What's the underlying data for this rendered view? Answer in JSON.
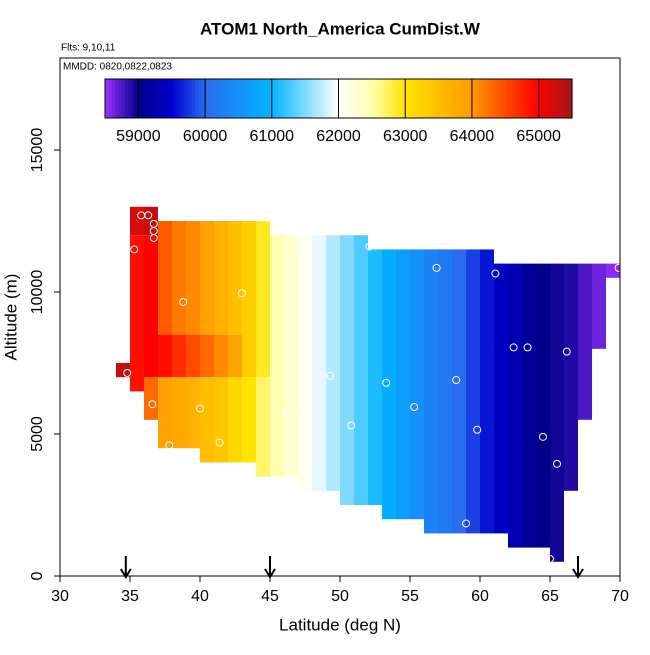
{
  "chart_data": {
    "type": "heatmap",
    "title": "ATOM1 North_America CumDist.W",
    "subtitle": "Flts: 9,10,11",
    "annotation": "MMDD: 0820,0822,0823",
    "x_label": "Latitude (deg N)",
    "y_label": "Altitude (m)",
    "xlim": [
      30,
      70
    ],
    "xticks": [
      30,
      35,
      40,
      45,
      50,
      55,
      60,
      65,
      70
    ],
    "ylim": [
      0,
      18240
    ],
    "yticks": [
      0,
      5000,
      10000,
      15000
    ],
    "colorbar_lim": [
      58500,
      65500
    ],
    "colorbar_ticks": [
      59000,
      60000,
      61000,
      62000,
      63000,
      64000,
      65000
    ],
    "colorscale": [
      [
        58500,
        "#9b30ff"
      ],
      [
        59000,
        "#00008b"
      ],
      [
        59500,
        "#0000cd"
      ],
      [
        60000,
        "#2a6cf0"
      ],
      [
        61000,
        "#00b4ff"
      ],
      [
        62000,
        "#ffffff"
      ],
      [
        62500,
        "#ffffb0"
      ],
      [
        63000,
        "#ffe400"
      ],
      [
        64000,
        "#ff9a00"
      ],
      [
        64500,
        "#ff4a00"
      ],
      [
        65000,
        "#ff0000"
      ],
      [
        65500,
        "#a01818"
      ]
    ],
    "columns": [
      {
        "lat": [
          34,
          35
        ],
        "bands": [
          [
            7000,
            7500,
            65300
          ]
        ]
      },
      {
        "lat": [
          35,
          36
        ],
        "bands": [
          [
            6500,
            12000,
            64900
          ],
          [
            12000,
            13000,
            65200
          ]
        ]
      },
      {
        "lat": [
          36,
          37
        ],
        "bands": [
          [
            5500,
            7000,
            64300
          ],
          [
            7000,
            12000,
            65000
          ],
          [
            12000,
            13000,
            65300
          ]
        ]
      },
      {
        "lat": [
          37,
          38
        ],
        "bands": [
          [
            4500,
            7000,
            63900
          ],
          [
            7000,
            8500,
            64900
          ],
          [
            8500,
            12500,
            64400
          ]
        ]
      },
      {
        "lat": [
          38,
          39
        ],
        "bands": [
          [
            4500,
            7000,
            63800
          ],
          [
            7000,
            8500,
            64700
          ],
          [
            8500,
            12500,
            64200
          ]
        ]
      },
      {
        "lat": [
          39,
          40
        ],
        "bands": [
          [
            4500,
            7000,
            63700
          ],
          [
            7000,
            8500,
            64500
          ],
          [
            8500,
            12500,
            64100
          ]
        ]
      },
      {
        "lat": [
          40,
          41
        ],
        "bands": [
          [
            4000,
            7000,
            63500
          ],
          [
            7000,
            8500,
            64300
          ],
          [
            8500,
            12500,
            63900
          ]
        ]
      },
      {
        "lat": [
          41,
          42
        ],
        "bands": [
          [
            4000,
            7000,
            63400
          ],
          [
            7000,
            8500,
            64100
          ],
          [
            8500,
            12500,
            63700
          ]
        ]
      },
      {
        "lat": [
          42,
          43
        ],
        "bands": [
          [
            4000,
            7000,
            63200
          ],
          [
            7000,
            8500,
            63900
          ],
          [
            8500,
            12500,
            63500
          ]
        ]
      },
      {
        "lat": [
          43,
          44
        ],
        "bands": [
          [
            4000,
            7000,
            63000
          ],
          [
            7000,
            12500,
            63300
          ]
        ]
      },
      {
        "lat": [
          44,
          45
        ],
        "bands": [
          [
            3500,
            7000,
            62700
          ],
          [
            7000,
            12500,
            62900
          ]
        ]
      },
      {
        "lat": [
          45,
          46
        ],
        "bands": [
          [
            3500,
            12000,
            62500
          ]
        ]
      },
      {
        "lat": [
          46,
          47
        ],
        "bands": [
          [
            3500,
            12000,
            62300
          ]
        ]
      },
      {
        "lat": [
          47,
          48
        ],
        "bands": [
          [
            3000,
            12000,
            62100
          ]
        ]
      },
      {
        "lat": [
          48,
          49
        ],
        "bands": [
          [
            3000,
            12000,
            61900
          ]
        ]
      },
      {
        "lat": [
          49,
          50
        ],
        "bands": [
          [
            3000,
            12000,
            61700
          ]
        ]
      },
      {
        "lat": [
          50,
          51
        ],
        "bands": [
          [
            2500,
            12000,
            61500
          ]
        ]
      },
      {
        "lat": [
          51,
          52
        ],
        "bands": [
          [
            2500,
            12000,
            61300
          ]
        ]
      },
      {
        "lat": [
          52,
          53
        ],
        "bands": [
          [
            2500,
            11500,
            61100
          ]
        ]
      },
      {
        "lat": [
          53,
          54
        ],
        "bands": [
          [
            2000,
            11500,
            60900
          ]
        ]
      },
      {
        "lat": [
          54,
          55
        ],
        "bands": [
          [
            2000,
            11500,
            60700
          ]
        ]
      },
      {
        "lat": [
          55,
          56
        ],
        "bands": [
          [
            2000,
            11500,
            60500
          ]
        ]
      },
      {
        "lat": [
          56,
          57
        ],
        "bands": [
          [
            1500,
            11500,
            60300
          ]
        ]
      },
      {
        "lat": [
          57,
          58
        ],
        "bands": [
          [
            1500,
            11500,
            60200
          ]
        ]
      },
      {
        "lat": [
          58,
          59
        ],
        "bands": [
          [
            1500,
            11500,
            60000
          ]
        ]
      },
      {
        "lat": [
          59,
          60
        ],
        "bands": [
          [
            1500,
            11500,
            59800
          ]
        ]
      },
      {
        "lat": [
          60,
          61
        ],
        "bands": [
          [
            1500,
            11500,
            59600
          ]
        ]
      },
      {
        "lat": [
          61,
          62
        ],
        "bands": [
          [
            1500,
            11000,
            59400
          ]
        ]
      },
      {
        "lat": [
          62,
          63
        ],
        "bands": [
          [
            1000,
            11000,
            59300
          ]
        ]
      },
      {
        "lat": [
          63,
          64
        ],
        "bands": [
          [
            1000,
            11000,
            59100
          ]
        ]
      },
      {
        "lat": [
          64,
          65
        ],
        "bands": [
          [
            1000,
            11000,
            59000
          ]
        ]
      },
      {
        "lat": [
          65,
          66
        ],
        "bands": [
          [
            500,
            11000,
            58950
          ]
        ]
      },
      {
        "lat": [
          66,
          67
        ],
        "bands": [
          [
            3000,
            11000,
            58900
          ]
        ]
      },
      {
        "lat": [
          67,
          68
        ],
        "bands": [
          [
            5500,
            11000,
            58750
          ]
        ]
      },
      {
        "lat": [
          68,
          69
        ],
        "bands": [
          [
            8000,
            11000,
            58650
          ]
        ]
      },
      {
        "lat": [
          69,
          70
        ],
        "bands": [
          [
            10500,
            11000,
            58550
          ]
        ]
      }
    ],
    "points": {
      "x": [
        35.3,
        35.8,
        36.3,
        36.7,
        36.7,
        36.7,
        34.8,
        36.6,
        38.8,
        37.8,
        40.0,
        41.4,
        43.0,
        46.2,
        47.2,
        49.3,
        50.8,
        52.1,
        53.3,
        55.3,
        56.9,
        58.3,
        59.0,
        59.8,
        61.1,
        62.4,
        63.4,
        64.5,
        65.5,
        66.2,
        69.9,
        65.0
      ],
      "y": [
        11500,
        12700,
        12700,
        12400,
        12150,
        11900,
        7150,
        6050,
        9650,
        4600,
        5900,
        4700,
        9950,
        5750,
        11800,
        7050,
        5300,
        11600,
        6800,
        5950,
        10850,
        6900,
        1850,
        5150,
        10650,
        8050,
        8050,
        4900,
        3950,
        7900,
        10850,
        600
      ]
    },
    "arrows": [
      34.7,
      45,
      67
    ]
  }
}
